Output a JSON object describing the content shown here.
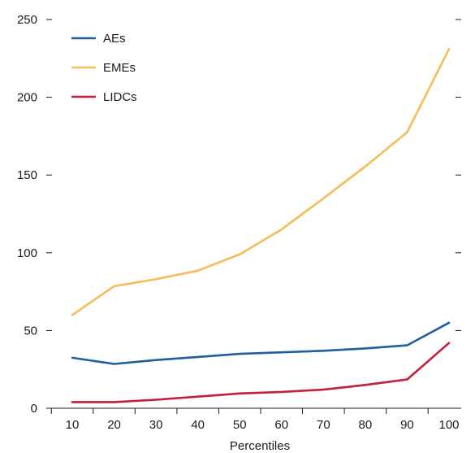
{
  "chart_data": {
    "type": "line",
    "title": "",
    "xlabel": "Percentiles",
    "ylabel": "",
    "x": [
      10,
      20,
      30,
      40,
      50,
      60,
      70,
      80,
      90,
      100
    ],
    "xlim": [
      10,
      100
    ],
    "ylim": [
      0,
      250
    ],
    "yticks": [
      "0",
      "50",
      "100",
      "150",
      "200",
      "250"
    ],
    "xticks": [
      "10",
      "20",
      "30",
      "40",
      "50",
      "60",
      "70",
      "80",
      "90",
      "100"
    ],
    "grid": false,
    "legend_position": "top-left",
    "series": [
      {
        "name": "AEs",
        "color": "#1f5fa0",
        "values": [
          32.5,
          28.5,
          31,
          33,
          35,
          36,
          37,
          38.5,
          40.5,
          55
        ]
      },
      {
        "name": "EMEs",
        "color": "#f5bc5a",
        "values": [
          60,
          78.5,
          83,
          88.5,
          99,
          115,
          135,
          155.5,
          177.5,
          231
        ]
      },
      {
        "name": "LIDCs",
        "color": "#c21f3a",
        "values": [
          4,
          4,
          5.5,
          7.5,
          9.5,
          10.5,
          12,
          15,
          18.5,
          42
        ]
      }
    ]
  }
}
